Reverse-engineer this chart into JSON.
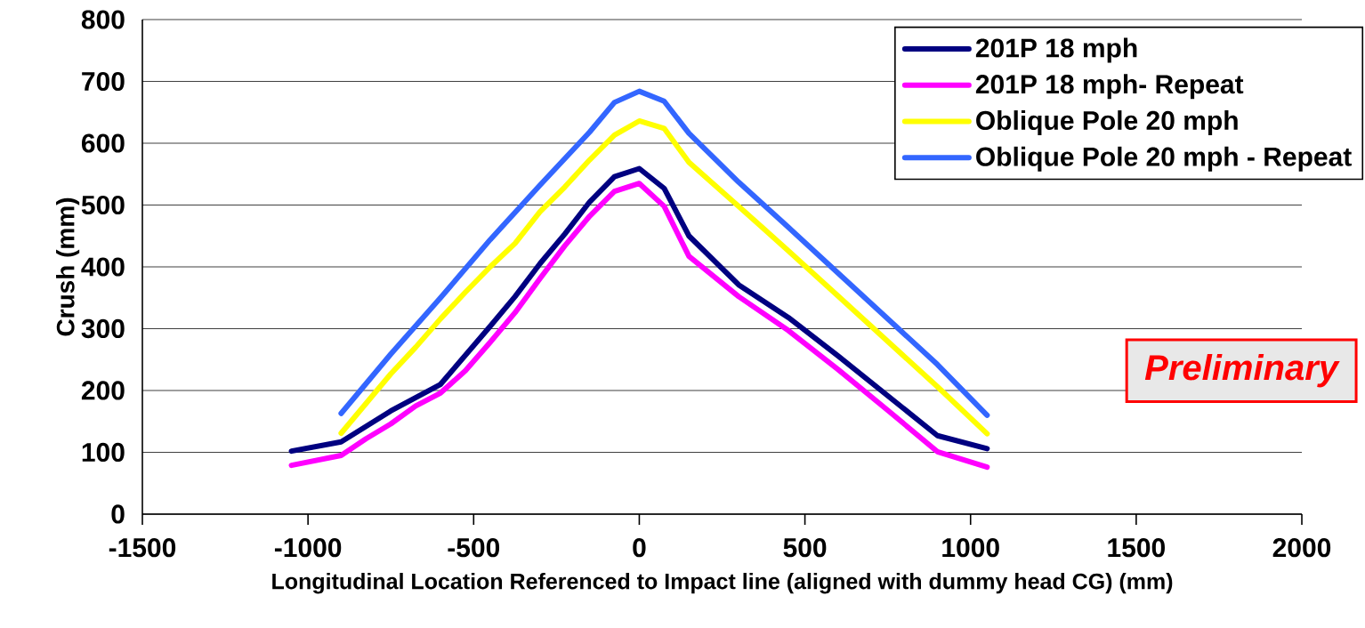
{
  "chart_data": {
    "type": "line",
    "xlabel": "Longitudinal Location Referenced to Impact line (aligned with dummy head CG) (mm)",
    "ylabel": "Crush (mm)",
    "xlim": [
      -1500,
      2000
    ],
    "xticks": [
      -1500,
      -1000,
      -500,
      0,
      500,
      1000,
      1500,
      2000
    ],
    "ylim": [
      0,
      800
    ],
    "yticks": [
      0,
      100,
      200,
      300,
      400,
      500,
      600,
      700,
      800
    ],
    "grid": "y",
    "legend": "top right",
    "marker": "none",
    "line_style": "solid",
    "annotations": [
      "Preliminary"
    ],
    "series": [
      {
        "name": "201P 18 mph",
        "color": "#000080",
        "x": [
          -1050,
          -900,
          -750,
          -600,
          -450,
          -375,
          -300,
          -225,
          -150,
          -75,
          0,
          75,
          150,
          300,
          450,
          600,
          900,
          1050
        ],
        "values": [
          102,
          117,
          167,
          210,
          304,
          352,
          405,
          453,
          505,
          546,
          559,
          527,
          450,
          371,
          318,
          256,
          127,
          106
        ]
      },
      {
        "name": "201P 18 mph- Repeat",
        "color": "#ff00ff",
        "x": [
          -1050,
          -900,
          -825,
          -750,
          -675,
          -600,
          -525,
          -450,
          -375,
          -300,
          -225,
          -150,
          -75,
          0,
          75,
          150,
          300,
          450,
          600,
          750,
          900,
          1050
        ],
        "values": [
          79,
          95,
          122,
          146,
          175,
          196,
          232,
          278,
          326,
          381,
          434,
          482,
          522,
          535,
          498,
          417,
          352,
          297,
          234,
          168,
          101,
          76
        ]
      },
      {
        "name": "Oblique Pole 20 mph",
        "color": "#ffff00",
        "x": [
          -900,
          -750,
          -675,
          -600,
          -525,
          -450,
          -375,
          -300,
          -225,
          -150,
          -75,
          0,
          75,
          150,
          300,
          450,
          600,
          900,
          1050
        ],
        "values": [
          131,
          227,
          270,
          316,
          359,
          400,
          438,
          489,
          529,
          573,
          613,
          636,
          624,
          569,
          498,
          426,
          353,
          206,
          130
        ]
      },
      {
        "name": "Oblique Pole 20 mph - Repeat",
        "color": "#3366ff",
        "x": [
          -900,
          -750,
          -600,
          -450,
          -300,
          -150,
          -75,
          0,
          75,
          150,
          300,
          450,
          600,
          900,
          1050
        ],
        "values": [
          163,
          259,
          350,
          444,
          532,
          618,
          666,
          684,
          668,
          616,
          537,
          464,
          390,
          242,
          160
        ]
      }
    ]
  }
}
